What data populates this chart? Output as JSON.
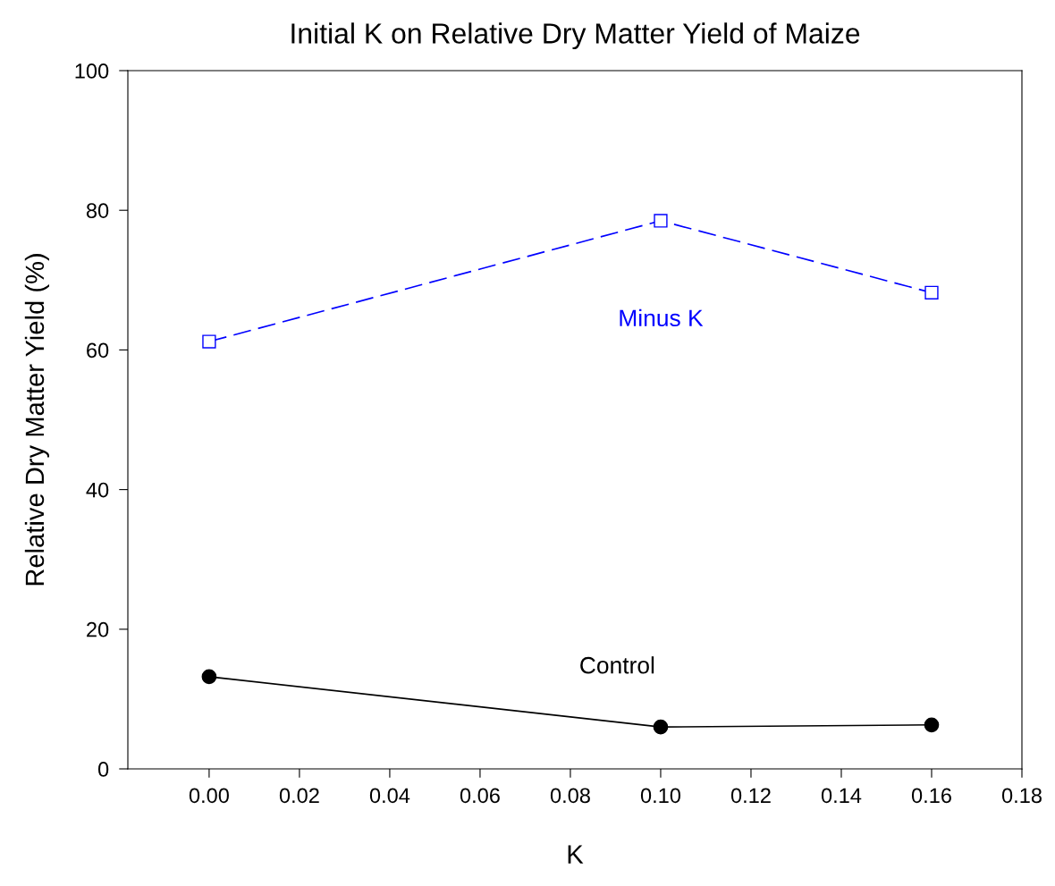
{
  "chart_data": {
    "type": "line",
    "title": "Initial K on Relative Dry Matter Yield of Maize",
    "xlabel": "K",
    "ylabel": "Relative Dry Matter Yield (%)",
    "x": [
      0.0,
      0.1,
      0.16
    ],
    "series": [
      {
        "name": "Minus K",
        "color": "#0000ff",
        "values": [
          61.2,
          78.5,
          68.2
        ],
        "marker": "square",
        "line_style": "dashed"
      },
      {
        "name": "Control",
        "color": "#000000",
        "values": [
          13.2,
          6.0,
          6.3
        ],
        "marker": "circle",
        "line_style": "solid"
      }
    ],
    "xlim": [
      -0.018,
      0.18
    ],
    "xticks": [
      {
        "value": 0,
        "label": "0.00"
      },
      {
        "value": 0.02,
        "label": "0.02"
      },
      {
        "value": 0.04,
        "label": "0.04"
      },
      {
        "value": 0.06,
        "label": "0.06"
      },
      {
        "value": 0.08,
        "label": "0.08"
      },
      {
        "value": 0.1,
        "label": "0.10"
      },
      {
        "value": 0.12,
        "label": "0.12"
      },
      {
        "value": 0.14,
        "label": "0.14"
      },
      {
        "value": 0.16,
        "label": "0.16"
      },
      {
        "value": 0.18,
        "label": "0.18"
      }
    ],
    "ylim": [
      0,
      100
    ],
    "yticks": [
      0,
      20,
      40,
      60,
      80,
      100
    ],
    "grid": false,
    "legend": false
  }
}
